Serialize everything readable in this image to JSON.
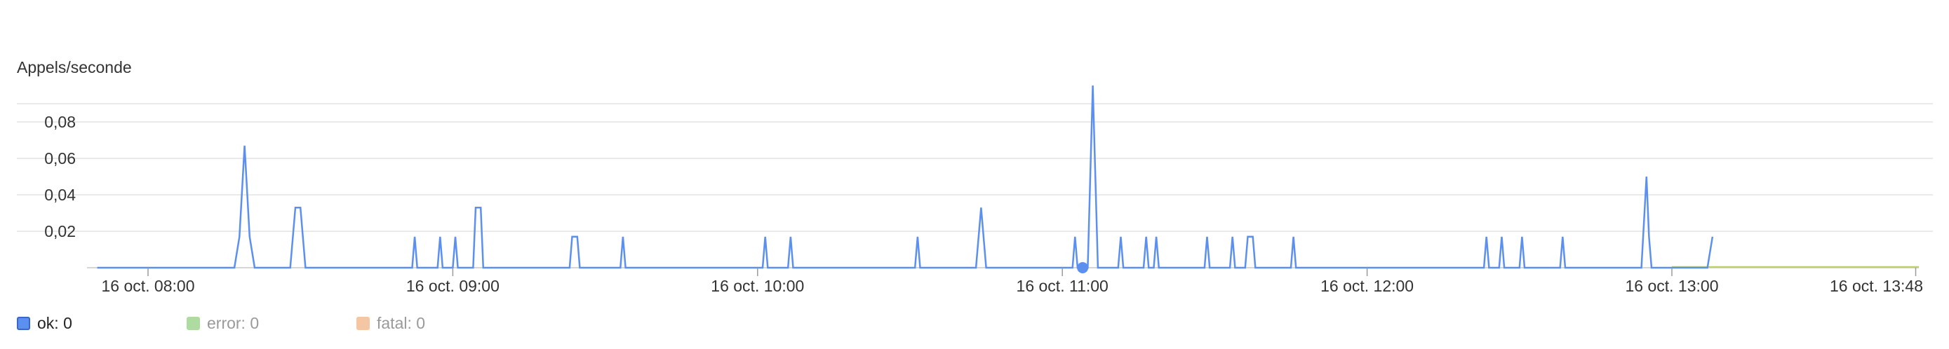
{
  "chart_data": {
    "type": "line",
    "title": "",
    "ylabel": "Appels/seconde",
    "xlabel": "",
    "ylim": [
      0,
      0.1
    ],
    "y_ticks": [
      "0,02",
      "0,04",
      "0,06",
      "0,08"
    ],
    "y_tick_values": [
      0.02,
      0.04,
      0.06,
      0.08
    ],
    "x_range_minutes": [
      470,
      832
    ],
    "x_ticks": [
      {
        "label": "16 oct. 08:00",
        "minute": 480
      },
      {
        "label": "16 oct. 09:00",
        "minute": 540
      },
      {
        "label": "16 oct. 10:00",
        "minute": 600
      },
      {
        "label": "16 oct. 11:00",
        "minute": 660
      },
      {
        "label": "16 oct. 12:00",
        "minute": 720
      },
      {
        "label": "16 oct. 13:00",
        "minute": 780
      },
      {
        "label": "16 oct. 13:48",
        "minute": 828
      }
    ],
    "grid": true,
    "legend_position": "bottom-left",
    "series": [
      {
        "name": "ok",
        "color": "#5b8ff0",
        "points": [
          [
            470,
            0
          ],
          [
            497,
            0
          ],
          [
            498,
            0.017
          ],
          [
            499,
            0.067
          ],
          [
            500,
            0.017
          ],
          [
            501,
            0
          ],
          [
            508,
            0
          ],
          [
            509,
            0.033
          ],
          [
            510,
            0.033
          ],
          [
            511,
            0
          ],
          [
            532,
            0
          ],
          [
            532.5,
            0.017
          ],
          [
            533,
            0
          ],
          [
            537,
            0
          ],
          [
            537.5,
            0.017
          ],
          [
            538,
            0
          ],
          [
            540,
            0
          ],
          [
            540.5,
            0.017
          ],
          [
            541,
            0
          ],
          [
            544,
            0
          ],
          [
            544.5,
            0.033
          ],
          [
            545.5,
            0.033
          ],
          [
            546,
            0
          ],
          [
            563,
            0
          ],
          [
            563.5,
            0.017
          ],
          [
            564.5,
            0.017
          ],
          [
            565,
            0
          ],
          [
            573,
            0
          ],
          [
            573.5,
            0.017
          ],
          [
            574,
            0
          ],
          [
            601,
            0
          ],
          [
            601.5,
            0.017
          ],
          [
            602,
            0
          ],
          [
            606,
            0
          ],
          [
            606.5,
            0.017
          ],
          [
            607,
            0
          ],
          [
            631,
            0
          ],
          [
            631.5,
            0.017
          ],
          [
            632,
            0
          ],
          [
            643,
            0
          ],
          [
            644,
            0.033
          ],
          [
            645,
            0
          ],
          [
            662,
            0
          ],
          [
            662.5,
            0.017
          ],
          [
            663,
            0
          ],
          [
            665,
            0
          ],
          [
            666,
            0.1
          ],
          [
            667,
            0
          ],
          [
            671,
            0
          ],
          [
            671.5,
            0.017
          ],
          [
            672,
            0
          ],
          [
            676,
            0
          ],
          [
            676.5,
            0.017
          ],
          [
            677,
            0
          ],
          [
            678,
            0
          ],
          [
            678.5,
            0.017
          ],
          [
            679,
            0
          ],
          [
            688,
            0
          ],
          [
            688.5,
            0.017
          ],
          [
            689,
            0
          ],
          [
            693,
            0
          ],
          [
            693.5,
            0.017
          ],
          [
            694,
            0
          ],
          [
            696,
            0
          ],
          [
            696.5,
            0.017
          ],
          [
            697.5,
            0.017
          ],
          [
            698,
            0
          ],
          [
            705,
            0
          ],
          [
            705.5,
            0.017
          ],
          [
            706,
            0
          ],
          [
            743,
            0
          ],
          [
            743.5,
            0.017
          ],
          [
            744,
            0
          ],
          [
            746,
            0
          ],
          [
            746.5,
            0.017
          ],
          [
            747,
            0
          ],
          [
            750,
            0
          ],
          [
            750.5,
            0.017
          ],
          [
            751,
            0
          ],
          [
            758,
            0
          ],
          [
            758.5,
            0.017
          ],
          [
            759,
            0
          ],
          [
            774,
            0
          ],
          [
            775,
            0.05
          ],
          [
            775.5,
            0.017
          ],
          [
            776,
            0
          ],
          [
            787,
            0
          ],
          [
            788,
            0.017
          ]
        ]
      }
    ],
    "tail_segment": {
      "from_minute": 780,
      "to_minute": 830,
      "color": "#bfd16a"
    },
    "highlight_point": {
      "minute": 664,
      "value": 0,
      "color": "#5b8ff0"
    },
    "legend": [
      {
        "label": "ok: 0",
        "color": "#5b8ff0",
        "active": true
      },
      {
        "label": "error: 0",
        "color": "#9ad38a",
        "active": false
      },
      {
        "label": "fatal: 0",
        "color": "#f2b98a",
        "active": false
      }
    ]
  }
}
